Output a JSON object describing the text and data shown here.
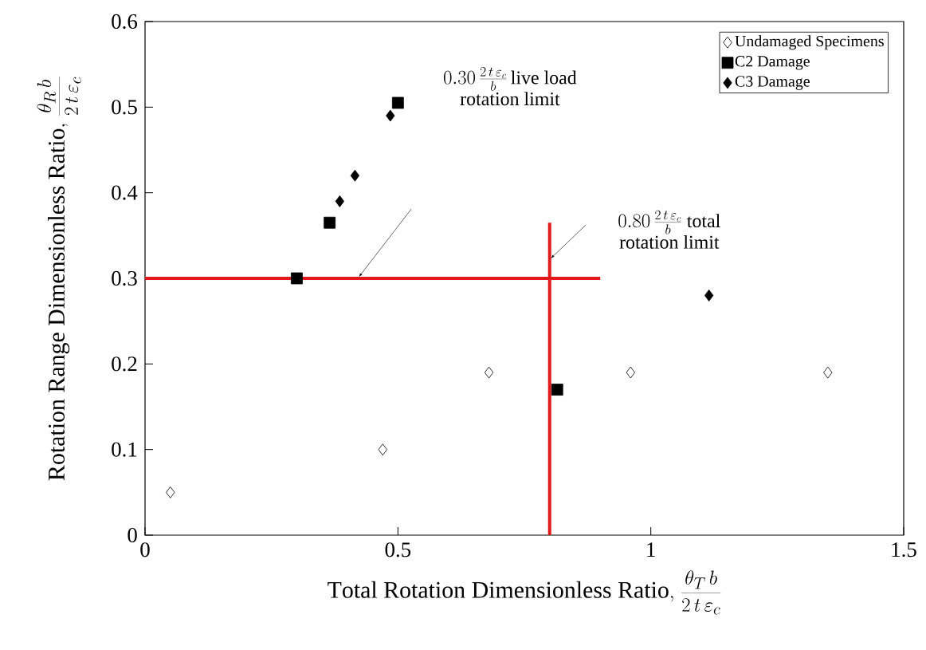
{
  "chart_data": {
    "type": "scatter",
    "xlabel": "\\mathrm{Total\\ Rotation\\ Dimensionless\\ Ratio,}\\ \\frac{\\theta_{T}\\,b}{2\\,t\\,\\varepsilon_{c}}",
    "ylabel": "\\mathrm{Rotation\\ Range\\ Dimensionless\\ Ratio,}\\ \\frac{\\theta_{R}\\,b}{2\\,t\\,\\varepsilon_{c}}",
    "xlim": [
      0,
      1.5
    ],
    "ylim": [
      0,
      0.6
    ],
    "xticks": [
      0,
      0.5,
      1,
      1.5
    ],
    "yticks": [
      0,
      0.1,
      0.2,
      0.3,
      0.4,
      0.5,
      0.6
    ],
    "grid": false,
    "legend": "top right",
    "series": [
      {
        "name": "Undamaged Specimens",
        "color": "#ffffff",
        "marker": "diamond",
        "x": [
          0.05,
          0.47,
          0.68,
          0.81,
          0.96,
          1.35
        ],
        "values": [
          0.05,
          0.1,
          0.19,
          null,
          0.19,
          0.19
        ]
      },
      {
        "name": "C2 Damage",
        "color": "#000000",
        "marker": "square",
        "x": [
          0.3,
          0.365,
          0.5,
          0.815
        ],
        "values": [
          0.3,
          0.365,
          0.505,
          0.17
        ]
      },
      {
        "name": "C3 Damage",
        "color": "#000000",
        "marker": "diamond",
        "x": [
          0.385,
          0.415,
          0.485,
          1.115
        ],
        "values": [
          0.39,
          0.42,
          0.49,
          0.28
        ]
      },
      {
        "type": "line",
        "color": "#e31a1c",
        "marker": "none",
        "line_style": "solid",
        "x": [
          0,
          0.9
        ],
        "values": [
          0.3,
          0.3
        ]
      },
      {
        "type": "line",
        "color": "#e31a1c",
        "marker": "none",
        "line_style": "solid",
        "x": [
          0.8,
          0.8
        ],
        "values": [
          0,
          0.365
        ]
      }
    ],
    "annotations": [
      "\\begin{array}{c}0.30\\,\\frac{2\\,t\\,\\varepsilon_{c}}{b}\\,\\mathrm{live\\ load}\\\\ \\mathrm{rotation\\ limit}\\end{array}",
      "\\begin{array}{c}0.80\\,\\frac{2\\,t\\,\\varepsilon_{c}}{b}\\ \\mathrm{total}\\\\ \\mathrm{rotation\\ limit}\\end{array}"
    ]
  }
}
